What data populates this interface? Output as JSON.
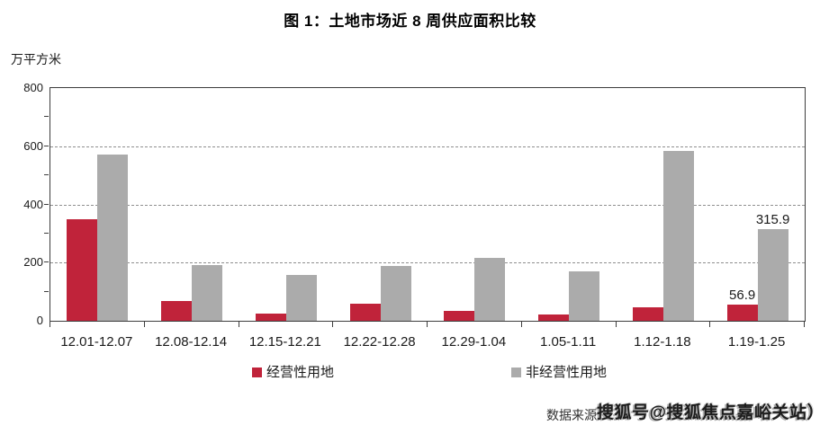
{
  "title": "图 1：土地市场近 8 周供应面积比较",
  "y_axis": {
    "unit_label": "万平方米",
    "tick_labels": [
      "800",
      "600",
      "400",
      "200",
      "0"
    ],
    "min": 0,
    "max": 800,
    "minor_tick_step": 100
  },
  "chart_data": {
    "type": "bar",
    "title": "图 1：土地市场近 8 周供应面积比较",
    "ylabel": "万平方米",
    "ylim": [
      0,
      800
    ],
    "grid": "horizontal dashed at 200/400/600",
    "legend_position": "bottom",
    "categories": [
      "12.01-12.07",
      "12.08-12.14",
      "12.15-12.21",
      "12.22-12.28",
      "12.29-1.04",
      "1.05-1.11",
      "1.12-1.18",
      "1.19-1.25"
    ],
    "series": [
      {
        "name": "经营性用地",
        "color": "#c0233a",
        "values": [
          348,
          68,
          24,
          60,
          35,
          22,
          47,
          56.9
        ],
        "labels": [
          null,
          null,
          null,
          null,
          null,
          null,
          null,
          "56.9"
        ]
      },
      {
        "name": "非经营性用地",
        "color": "#ababab",
        "values": [
          570,
          193,
          157,
          188,
          215,
          171,
          585,
          315.9
        ],
        "labels": [
          null,
          null,
          null,
          null,
          null,
          null,
          null,
          "315.9"
        ]
      }
    ]
  },
  "legend": {
    "items": [
      {
        "label": "经营性用地",
        "color": "#c0233a"
      },
      {
        "label": "非经营性用地",
        "color": "#ababab"
      }
    ]
  },
  "footer": {
    "source_label": "数据来源",
    "watermark_text": "搜狐号@搜狐焦点嘉峪关站）"
  },
  "colors": {
    "series_operating": "#c0233a",
    "series_non_operating": "#ababab",
    "axis": "#3d3d3d",
    "gridline": "#8f8f8f"
  }
}
